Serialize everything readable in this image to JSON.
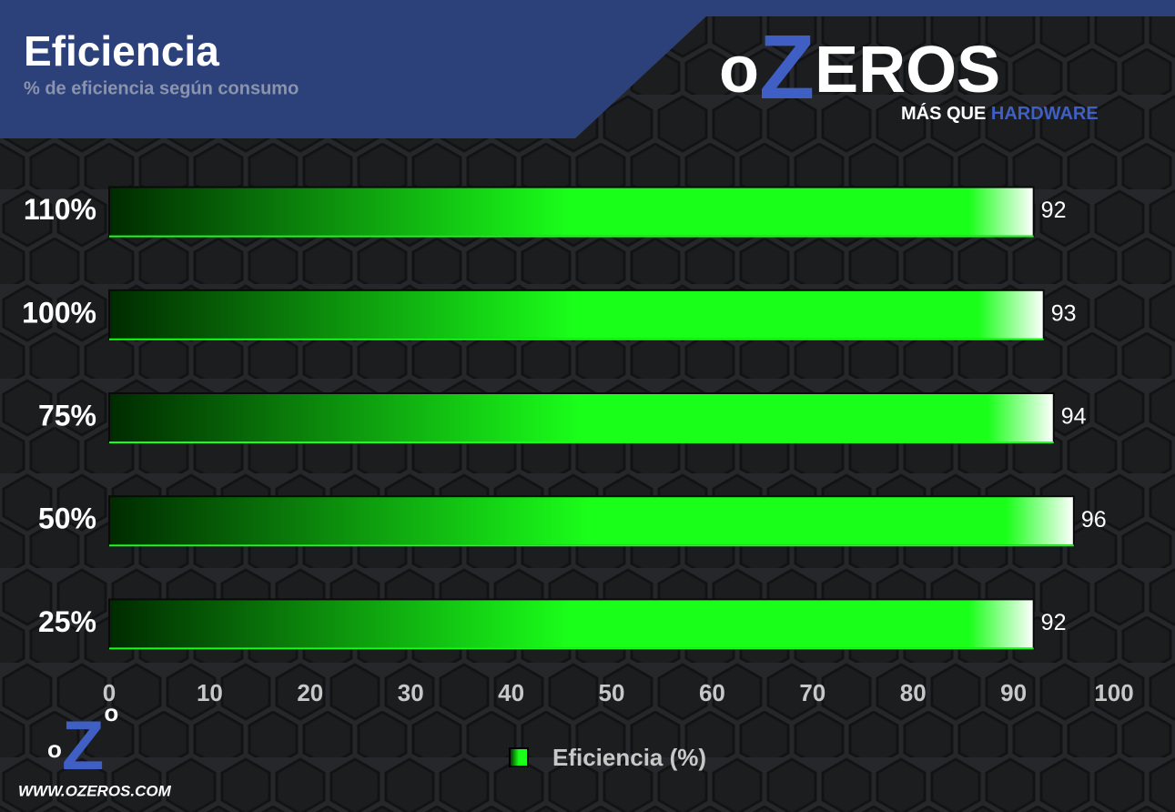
{
  "chart_data": {
    "type": "barh",
    "title": "Eficiencia",
    "subtitle": "% de eficiencia según consumo",
    "categories": [
      "110%",
      "100%",
      "75%",
      "50%",
      "25%"
    ],
    "series": [
      {
        "name": "Eficiencia (%)",
        "color": "#1aff1a",
        "values": [
          92,
          93,
          94,
          96,
          92
        ]
      }
    ],
    "xlim": [
      0,
      100
    ],
    "xticks": [
      0,
      10,
      20,
      30,
      40,
      50,
      60,
      70,
      80,
      90,
      100
    ],
    "legend": "bottom"
  },
  "branding": {
    "logo": [
      "o",
      "Z",
      "EROS"
    ],
    "tagline": [
      "MÁS QUE",
      "HARDWARE"
    ],
    "footer_logo": [
      "o",
      "Z",
      "o"
    ],
    "footer_url": "WWW.OZEROS.COM"
  }
}
